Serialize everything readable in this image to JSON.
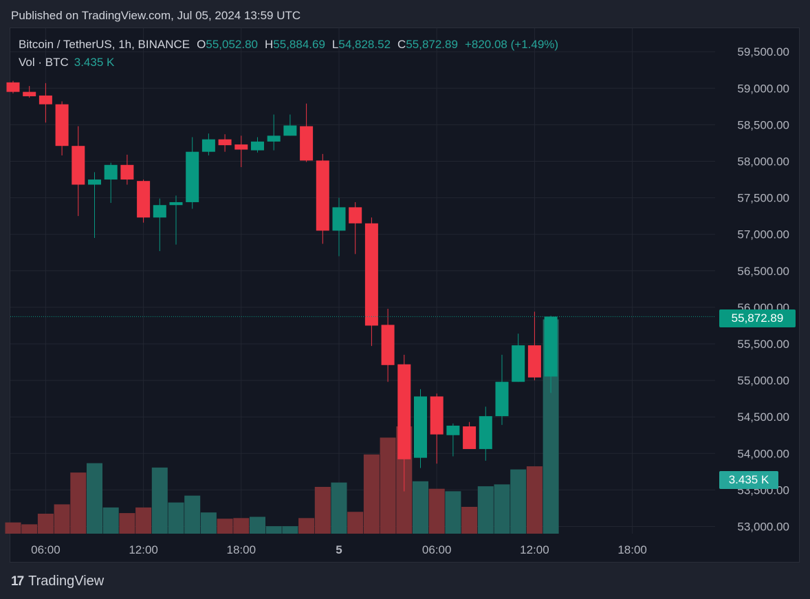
{
  "header": {
    "published": "Published on TradingView.com, Jul 05, 2024 13:59 UTC"
  },
  "legend": {
    "symbol": "Bitcoin / TetherUS, 1h, BINANCE",
    "o_label": "O",
    "o_value": "55,052.80",
    "h_label": "H",
    "h_value": "55,884.69",
    "l_label": "L",
    "l_value": "54,828.52",
    "c_label": "C",
    "c_value": "55,872.89",
    "change": "+820.08 (+1.49%)",
    "vol_label": "Vol · BTC",
    "vol_value": "3.435 K"
  },
  "last_price_label": "55,872.89",
  "last_volume_label": "3.435 K",
  "brand": {
    "name": "TradingView",
    "logo_text": "17"
  },
  "colors": {
    "up": "#089981",
    "down": "#f23645",
    "vol_up": "#22625e",
    "vol_down": "#7a3135",
    "grid": "#222631"
  },
  "chart_data": {
    "type": "candlestick",
    "title": "Bitcoin / TetherUS, 1h, BINANCE",
    "ylim": [
      52900,
      59800
    ],
    "y_ticks": [
      53000,
      53500,
      54000,
      54500,
      55000,
      55500,
      56000,
      56500,
      57000,
      57500,
      58000,
      58500,
      59000,
      59500
    ],
    "y_tick_labels": [
      "53,000.00",
      "53,500.00",
      "54,000.00",
      "54,500.00",
      "55,000.00",
      "55,500.00",
      "56,000.00",
      "56,500.00",
      "57,000.00",
      "57,500.00",
      "58,000.00",
      "58,500.00",
      "59,000.00",
      "59,500.00"
    ],
    "x_tick_labels": [
      "06:00",
      "12:00",
      "18:00",
      "5",
      "06:00",
      "12:00",
      "18:00"
    ],
    "x_tick_hours": [
      6,
      12,
      18,
      24,
      30,
      36,
      42
    ],
    "start_hour": 4,
    "vol_max": 4500,
    "candles": [
      {
        "o": 59080,
        "h": 59100,
        "l": 58930,
        "c": 58950,
        "v": 180
      },
      {
        "o": 58950,
        "h": 59030,
        "l": 58870,
        "c": 58890,
        "v": 150
      },
      {
        "o": 58900,
        "h": 59070,
        "l": 58530,
        "c": 58780,
        "v": 320
      },
      {
        "o": 58780,
        "h": 58820,
        "l": 58080,
        "c": 58210,
        "v": 470
      },
      {
        "o": 58210,
        "h": 58480,
        "l": 57250,
        "c": 57680,
        "v": 980
      },
      {
        "o": 57680,
        "h": 57850,
        "l": 56950,
        "c": 57750,
        "v": 1130
      },
      {
        "o": 57750,
        "h": 57980,
        "l": 57430,
        "c": 57950,
        "v": 420
      },
      {
        "o": 57950,
        "h": 58090,
        "l": 57680,
        "c": 57750,
        "v": 330
      },
      {
        "o": 57730,
        "h": 57750,
        "l": 57160,
        "c": 57230,
        "v": 420
      },
      {
        "o": 57230,
        "h": 57490,
        "l": 56770,
        "c": 57400,
        "v": 1060
      },
      {
        "o": 57400,
        "h": 57530,
        "l": 56860,
        "c": 57440,
        "v": 500
      },
      {
        "o": 57440,
        "h": 58330,
        "l": 57350,
        "c": 58130,
        "v": 610
      },
      {
        "o": 58130,
        "h": 58380,
        "l": 58080,
        "c": 58300,
        "v": 340
      },
      {
        "o": 58300,
        "h": 58370,
        "l": 58130,
        "c": 58220,
        "v": 240
      },
      {
        "o": 58230,
        "h": 58350,
        "l": 57920,
        "c": 58160,
        "v": 250
      },
      {
        "o": 58150,
        "h": 58330,
        "l": 58120,
        "c": 58270,
        "v": 270
      },
      {
        "o": 58270,
        "h": 58640,
        "l": 58150,
        "c": 58350,
        "v": 120
      },
      {
        "o": 58350,
        "h": 58640,
        "l": 58350,
        "c": 58490,
        "v": 120
      },
      {
        "o": 58480,
        "h": 58790,
        "l": 57990,
        "c": 58010,
        "v": 250
      },
      {
        "o": 58010,
        "h": 58100,
        "l": 56870,
        "c": 57050,
        "v": 750
      },
      {
        "o": 57050,
        "h": 57500,
        "l": 56700,
        "c": 57370,
        "v": 820
      },
      {
        "o": 57370,
        "h": 57440,
        "l": 56730,
        "c": 57150,
        "v": 350
      },
      {
        "o": 57150,
        "h": 57230,
        "l": 55470,
        "c": 55750,
        "v": 1270
      },
      {
        "o": 55760,
        "h": 55980,
        "l": 54980,
        "c": 55210,
        "v": 1540
      },
      {
        "o": 55220,
        "h": 55350,
        "l": 53480,
        "c": 53920,
        "v": 1720
      },
      {
        "o": 53940,
        "h": 54880,
        "l": 53800,
        "c": 54780,
        "v": 840
      },
      {
        "o": 54780,
        "h": 54820,
        "l": 53860,
        "c": 54260,
        "v": 720
      },
      {
        "o": 54250,
        "h": 54410,
        "l": 53960,
        "c": 54380,
        "v": 680
      },
      {
        "o": 54370,
        "h": 54430,
        "l": 54060,
        "c": 54060,
        "v": 430
      },
      {
        "o": 54060,
        "h": 54640,
        "l": 53900,
        "c": 54510,
        "v": 760
      },
      {
        "o": 54510,
        "h": 55350,
        "l": 54390,
        "c": 54980,
        "v": 790
      },
      {
        "o": 54980,
        "h": 55640,
        "l": 54980,
        "c": 55480,
        "v": 1030
      },
      {
        "o": 55480,
        "h": 55940,
        "l": 55000,
        "c": 55040,
        "v": 1080
      },
      {
        "o": 55052.8,
        "h": 55884.69,
        "l": 54828.52,
        "c": 55872.89,
        "v": 3435
      }
    ]
  }
}
